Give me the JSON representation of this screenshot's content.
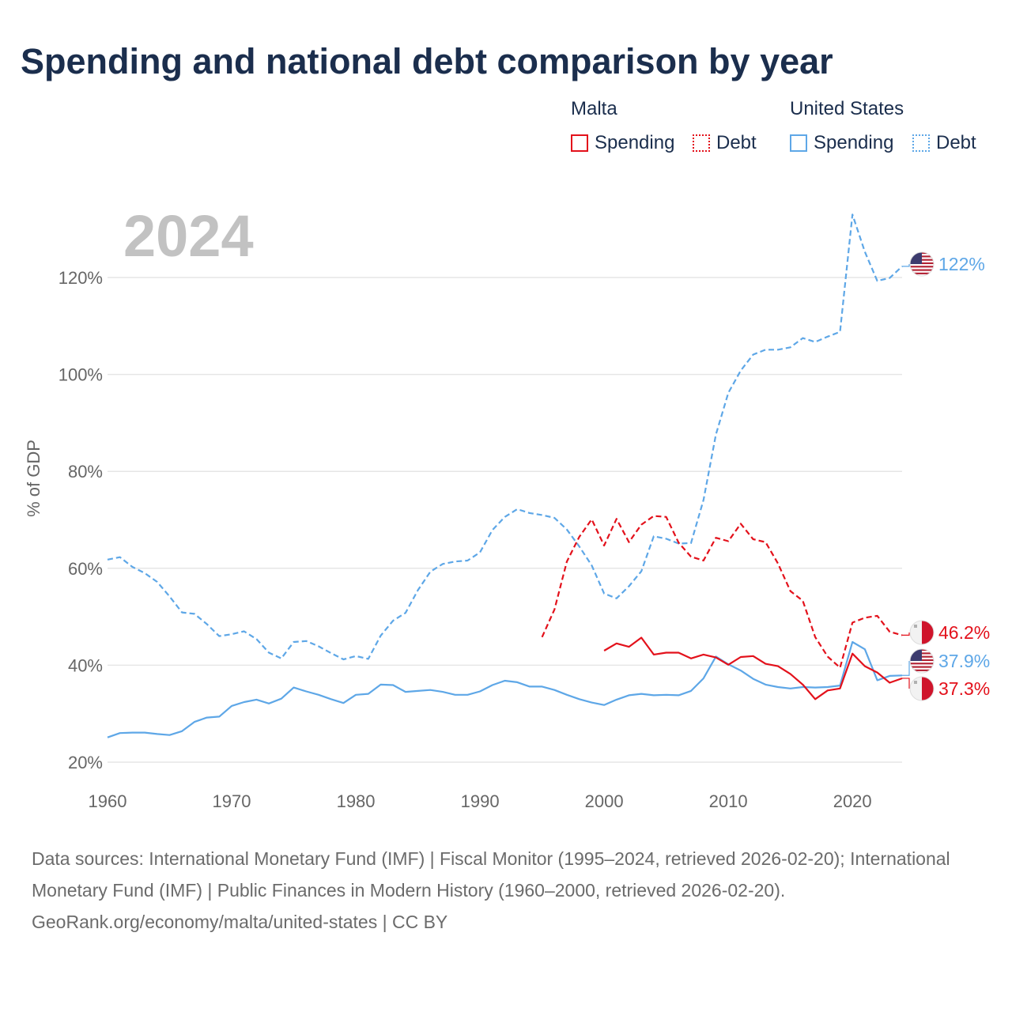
{
  "title": "Spending and national debt comparison by year",
  "legend": {
    "malta": {
      "label": "Malta",
      "spending": "Spending",
      "debt": "Debt"
    },
    "united_states": {
      "label": "United States",
      "spending": "Spending",
      "debt": "Debt"
    }
  },
  "colors": {
    "malta": "#e3111b",
    "united_states": "#5ea7e7",
    "grid": "#e6e6e6",
    "text": "#1b2e4d"
  },
  "icons": {
    "us_flag": "us-flag-icon",
    "malta_flag": "malta-flag-icon"
  },
  "footer": {
    "sources": "Data sources: International Monetary Fund (IMF) | Fiscal Monitor (1995–2024, retrieved 2026-02-20); International Monetary Fund (IMF) | Public Finances in Modern History (1960–2000, retrieved 2026-02-20).",
    "credit": "GeoRank.org/economy/malta/united-states | CC BY"
  },
  "chart_data": {
    "type": "line",
    "year_label": "2024",
    "ylabel": "% of GDP",
    "xlabel": "",
    "xlim": [
      1960,
      2024
    ],
    "ylim": [
      20,
      135
    ],
    "x_ticks": [
      1960,
      1970,
      1980,
      1990,
      2000,
      2010,
      2020
    ],
    "x_tick_labels": [
      "1960",
      "1970",
      "1980",
      "1990",
      "2000",
      "2010",
      "2020"
    ],
    "y_ticks": [
      20,
      40,
      60,
      80,
      100,
      120
    ],
    "y_tick_labels": [
      "20%",
      "40%",
      "60%",
      "80%",
      "100%",
      "120%"
    ],
    "series": [
      {
        "name": "United States Debt",
        "country": "United States",
        "metric": "Debt",
        "style": "dashed",
        "color": "#5ea7e7",
        "end_label": "122%",
        "flag": "us",
        "x": [
          1960,
          1961,
          1962,
          1963,
          1964,
          1965,
          1966,
          1967,
          1968,
          1969,
          1970,
          1971,
          1972,
          1973,
          1974,
          1975,
          1976,
          1977,
          1978,
          1979,
          1980,
          1981,
          1982,
          1983,
          1984,
          1985,
          1986,
          1987,
          1988,
          1989,
          1990,
          1991,
          1992,
          1993,
          1994,
          1995,
          1996,
          1997,
          1998,
          1999,
          2000,
          2001,
          2002,
          2003,
          2004,
          2005,
          2006,
          2007,
          2008,
          2009,
          2010,
          2011,
          2012,
          2013,
          2014,
          2015,
          2016,
          2017,
          2018,
          2019,
          2020,
          2021,
          2022,
          2023,
          2024
        ],
        "values": [
          61.8,
          62.3,
          60.3,
          59.0,
          57.2,
          54.2,
          50.9,
          50.6,
          48.5,
          46.0,
          46.4,
          47.0,
          45.4,
          42.6,
          41.4,
          44.8,
          45.0,
          43.9,
          42.5,
          41.2,
          41.9,
          41.3,
          46.1,
          49.2,
          50.8,
          55.5,
          59.3,
          60.9,
          61.4,
          61.6,
          63.3,
          67.9,
          70.6,
          72.2,
          71.4,
          71.0,
          70.4,
          68.0,
          64.5,
          60.6,
          54.8,
          53.8,
          56.3,
          59.4,
          66.6,
          66.1,
          65.1,
          65.2,
          74.1,
          87.6,
          96.2,
          100.8,
          104.1,
          105.1,
          105.1,
          105.6,
          107.5,
          106.7,
          107.8,
          108.8,
          133.0,
          125.3,
          119.3,
          119.9,
          122.3
        ]
      },
      {
        "name": "United States Spending",
        "country": "United States",
        "metric": "Spending",
        "style": "solid",
        "color": "#5ea7e7",
        "end_label": "37.9%",
        "flag": "us",
        "x": [
          1960,
          1961,
          1962,
          1963,
          1964,
          1965,
          1966,
          1967,
          1968,
          1969,
          1970,
          1971,
          1972,
          1973,
          1974,
          1975,
          1976,
          1977,
          1978,
          1979,
          1980,
          1981,
          1982,
          1983,
          1984,
          1985,
          1986,
          1987,
          1988,
          1989,
          1990,
          1991,
          1992,
          1993,
          1994,
          1995,
          1996,
          1997,
          1998,
          1999,
          2000,
          2001,
          2002,
          2003,
          2004,
          2005,
          2006,
          2007,
          2008,
          2009,
          2010,
          2011,
          2012,
          2013,
          2014,
          2015,
          2016,
          2017,
          2018,
          2019,
          2020,
          2021,
          2022,
          2023,
          2024
        ],
        "values": [
          25.1,
          26.0,
          26.1,
          26.1,
          25.8,
          25.6,
          26.4,
          28.3,
          29.2,
          29.4,
          31.6,
          32.4,
          32.9,
          32.1,
          33.1,
          35.4,
          34.6,
          33.9,
          33.0,
          32.2,
          33.9,
          34.1,
          36.0,
          35.9,
          34.5,
          34.7,
          34.9,
          34.5,
          33.9,
          33.9,
          34.6,
          35.9,
          36.8,
          36.5,
          35.6,
          35.6,
          34.9,
          33.9,
          33.0,
          32.3,
          31.8,
          32.9,
          33.8,
          34.1,
          33.8,
          33.9,
          33.8,
          34.7,
          37.3,
          41.8,
          40.2,
          38.9,
          37.2,
          36.0,
          35.5,
          35.2,
          35.5,
          35.4,
          35.5,
          35.8,
          44.8,
          43.3,
          36.9,
          37.8,
          37.9
        ]
      },
      {
        "name": "Malta Debt",
        "country": "Malta",
        "metric": "Debt",
        "style": "dashed",
        "color": "#e3111b",
        "end_label": "46.2%",
        "flag": "malta",
        "x": [
          1995,
          1996,
          1997,
          1998,
          1999,
          2000,
          2001,
          2002,
          2003,
          2004,
          2005,
          2006,
          2007,
          2008,
          2009,
          2010,
          2011,
          2012,
          2013,
          2014,
          2015,
          2016,
          2017,
          2018,
          2019,
          2020,
          2021,
          2022,
          2023,
          2024
        ],
        "values": [
          45.8,
          51.5,
          61.4,
          66.5,
          70.1,
          64.7,
          70.2,
          65.4,
          69.0,
          70.8,
          70.6,
          65.3,
          62.4,
          61.6,
          66.3,
          65.6,
          69.2,
          66.0,
          65.4,
          61.0,
          55.3,
          53.3,
          45.8,
          41.8,
          39.5,
          48.8,
          49.8,
          50.2,
          46.9,
          46.2
        ]
      },
      {
        "name": "Malta Spending",
        "country": "Malta",
        "metric": "Spending",
        "style": "solid",
        "color": "#e3111b",
        "end_label": "37.3%",
        "flag": "malta",
        "x": [
          2000,
          2001,
          2002,
          2003,
          2004,
          2005,
          2006,
          2007,
          2008,
          2009,
          2010,
          2011,
          2012,
          2013,
          2014,
          2015,
          2016,
          2017,
          2018,
          2019,
          2020,
          2021,
          2022,
          2023,
          2024
        ],
        "values": [
          43.0,
          44.5,
          43.8,
          45.7,
          42.2,
          42.6,
          42.6,
          41.4,
          42.2,
          41.6,
          40.1,
          41.7,
          41.9,
          40.3,
          39.8,
          38.2,
          36.0,
          33.0,
          34.8,
          35.2,
          42.4,
          39.8,
          38.5,
          36.4,
          37.3
        ]
      }
    ]
  }
}
